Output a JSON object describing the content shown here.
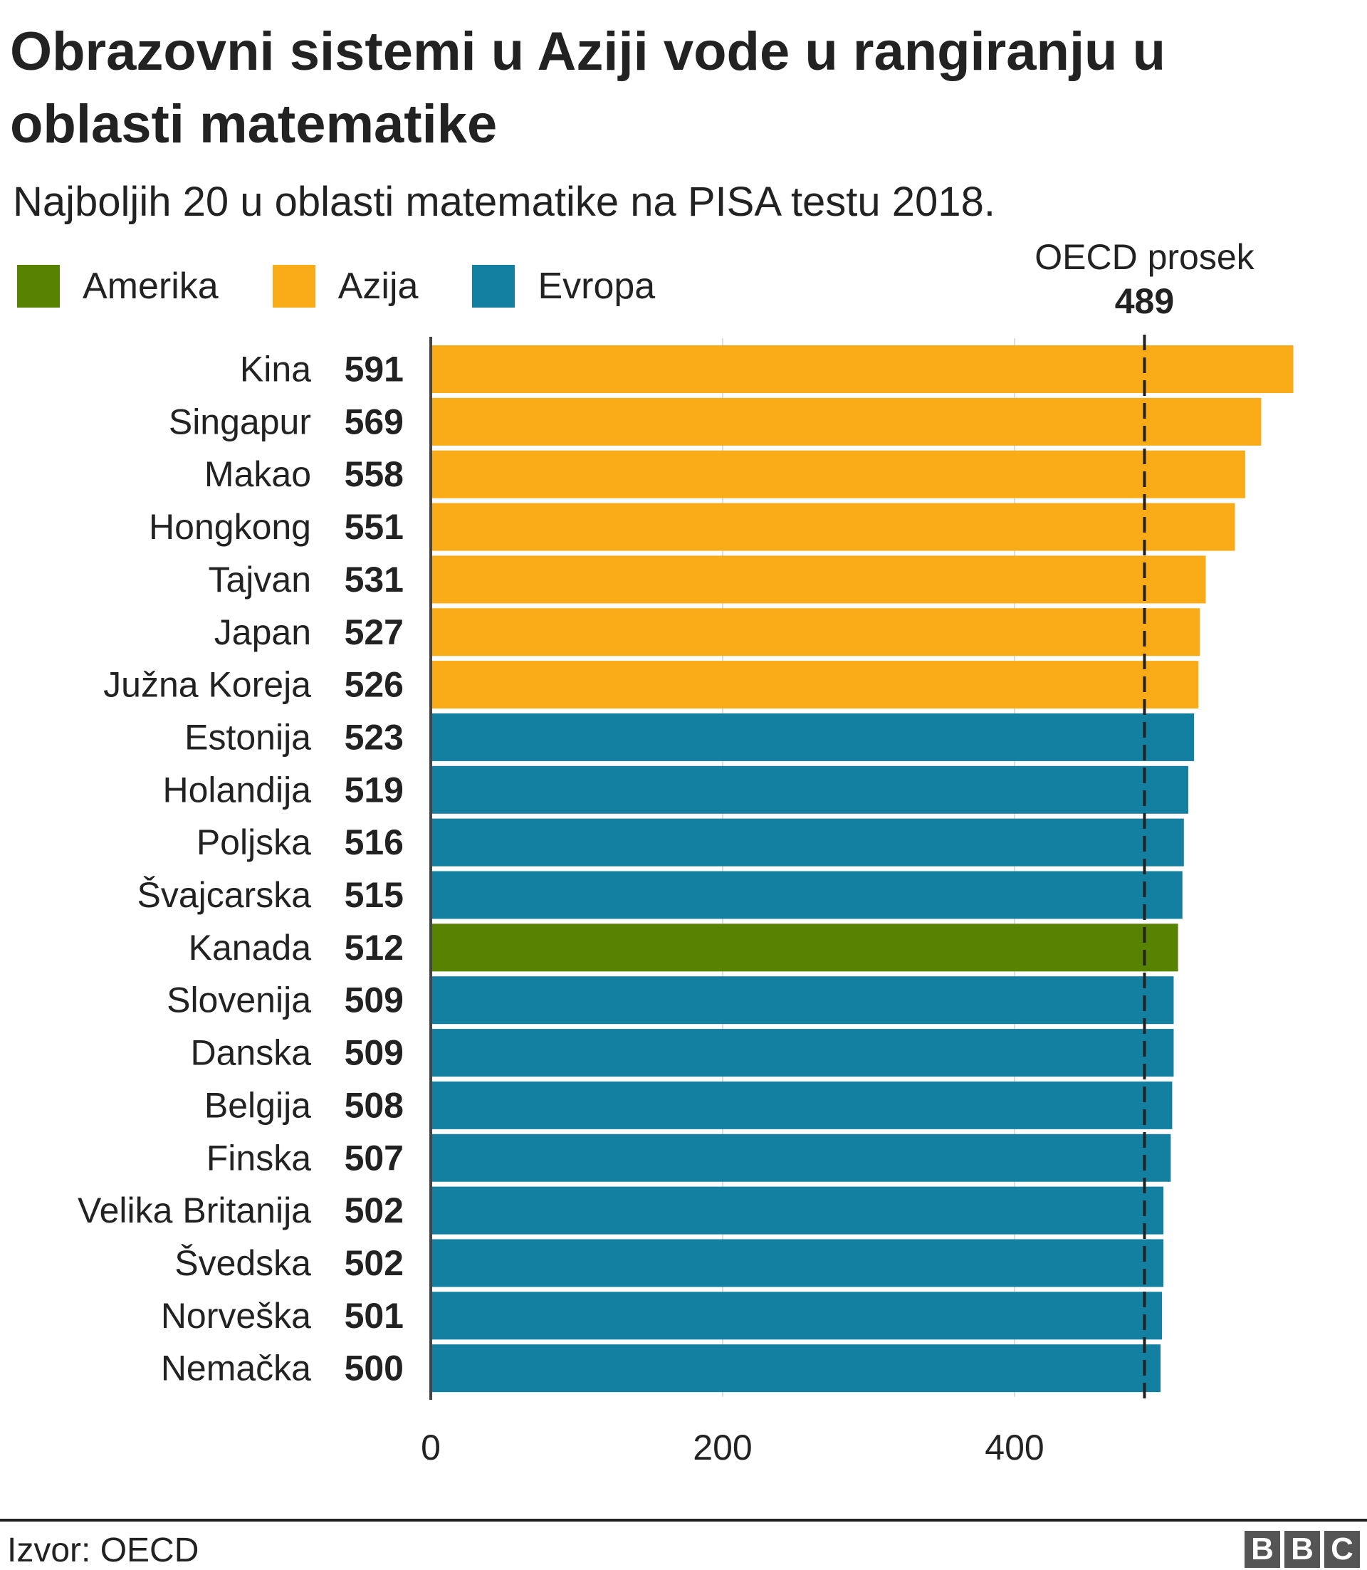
{
  "title": "Obrazovni sistemi u Aziji vode u rangiranju u oblasti matematike",
  "subtitle": "Najboljih 20 u oblasti matematike na PISA testu 2018.",
  "legend": [
    {
      "label": "Amerika",
      "color": "#588300"
    },
    {
      "label": "Azija",
      "color": "#FAAB18"
    },
    {
      "label": "Evropa",
      "color": "#1380A1"
    }
  ],
  "footer": {
    "source": "Izvor: OECD",
    "logo": "BBC"
  },
  "chart_data": {
    "type": "bar",
    "orientation": "horizontal",
    "categories": [
      "Kina",
      "Singapur",
      "Makao",
      "Hongkong",
      "Tajvan",
      "Japan",
      "Južna Koreja",
      "Estonija",
      "Holandija",
      "Poljska",
      "Švajcarska",
      "Kanada",
      "Slovenija",
      "Danska",
      "Belgija",
      "Finska",
      "Velika Britanija",
      "Švedska",
      "Norveška",
      "Nemačka"
    ],
    "values": [
      591,
      569,
      558,
      551,
      531,
      527,
      526,
      523,
      519,
      516,
      515,
      512,
      509,
      509,
      508,
      507,
      502,
      502,
      501,
      500
    ],
    "groups": [
      "Azija",
      "Azija",
      "Azija",
      "Azija",
      "Azija",
      "Azija",
      "Azija",
      "Evropa",
      "Evropa",
      "Evropa",
      "Evropa",
      "Amerika",
      "Evropa",
      "Evropa",
      "Evropa",
      "Evropa",
      "Evropa",
      "Evropa",
      "Evropa",
      "Evropa"
    ],
    "xlim": [
      0,
      600
    ],
    "xticks": [
      "0",
      "200",
      "400"
    ],
    "reference_line": {
      "label": "OECD prosek",
      "value": 489,
      "value_label": "489",
      "style": "dashed"
    },
    "grid": true,
    "legend_position": "top-left"
  }
}
